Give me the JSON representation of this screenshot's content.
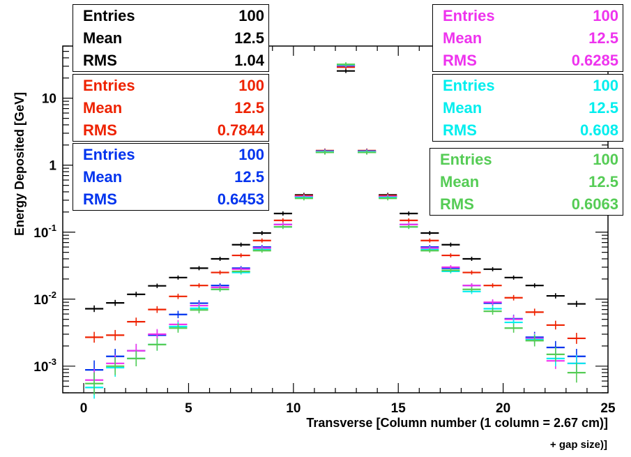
{
  "chart_data": {
    "type": "scatter",
    "xlabel_line1": "Transverse [Column number (1 column = 2.67 cm)]",
    "xlabel_line2": "+ gap size)]",
    "ylabel": "Energy Deposited [GeV]",
    "xlim": [
      -1,
      25
    ],
    "ylim": [
      0.0004,
      60
    ],
    "yscale": "log",
    "x_ticks": [
      "0",
      "5",
      "10",
      "15",
      "20",
      "25"
    ],
    "y_ticks": [
      {
        "value": 0.001,
        "base": "10",
        "exp": "-3"
      },
      {
        "value": 0.01,
        "base": "10",
        "exp": "-2"
      },
      {
        "value": 0.1,
        "base": "10",
        "exp": "-1"
      },
      {
        "value": 1,
        "base": "1",
        "exp": ""
      },
      {
        "value": 10,
        "base": "10",
        "exp": ""
      }
    ],
    "grid": false,
    "x": [
      0.5,
      1.5,
      2.5,
      3.5,
      4.5,
      5.5,
      6.5,
      7.5,
      8.5,
      9.5,
      10.5,
      11.5,
      12.5,
      13.5,
      14.5,
      15.5,
      16.5,
      17.5,
      18.5,
      19.5,
      20.5,
      21.5,
      22.5,
      23.5
    ],
    "series": [
      {
        "color": "#000000",
        "values": [
          0.0072,
          0.0088,
          0.0118,
          0.0158,
          0.021,
          0.029,
          0.04,
          0.065,
          0.097,
          0.19,
          0.36,
          1.55,
          25.5,
          1.55,
          0.36,
          0.19,
          0.097,
          0.065,
          0.04,
          0.028,
          0.021,
          0.016,
          0.0112,
          0.0085
        ]
      },
      {
        "color": "#ee2200",
        "values": [
          0.0027,
          0.0029,
          0.0046,
          0.007,
          0.011,
          0.016,
          0.025,
          0.045,
          0.075,
          0.15,
          0.35,
          1.65,
          29.0,
          1.65,
          0.35,
          0.15,
          0.075,
          0.045,
          0.025,
          0.016,
          0.0105,
          0.0064,
          0.0041,
          0.0026
        ]
      },
      {
        "color": "#0033ee",
        "values": [
          0.00088,
          0.0014,
          0.0017,
          0.0029,
          0.0059,
          0.0087,
          0.016,
          0.029,
          0.06,
          0.13,
          0.34,
          1.62,
          30.5,
          1.62,
          0.34,
          0.13,
          0.06,
          0.029,
          0.016,
          0.0087,
          0.0051,
          0.0027,
          0.0019,
          0.0014
        ]
      },
      {
        "color": "#ee33ee",
        "values": [
          0.00062,
          0.0011,
          0.0017,
          0.003,
          0.0042,
          0.008,
          0.015,
          0.028,
          0.058,
          0.13,
          0.34,
          1.6,
          31.0,
          1.6,
          0.34,
          0.13,
          0.058,
          0.03,
          0.016,
          0.009,
          0.005,
          0.0026,
          0.0012,
          0.0011
        ]
      },
      {
        "color": "#00eeee",
        "values": [
          0.00048,
          0.00095,
          0.0013,
          0.0021,
          0.0039,
          0.0073,
          0.014,
          0.025,
          0.055,
          0.12,
          0.33,
          1.58,
          31.5,
          1.58,
          0.33,
          0.12,
          0.055,
          0.026,
          0.013,
          0.0072,
          0.0045,
          0.0025,
          0.0013,
          0.0011
        ]
      },
      {
        "color": "#55cc55",
        "values": [
          0.00055,
          0.001,
          0.0013,
          0.0021,
          0.0037,
          0.0069,
          0.014,
          0.026,
          0.053,
          0.12,
          0.32,
          1.55,
          32.0,
          1.55,
          0.32,
          0.12,
          0.053,
          0.027,
          0.014,
          0.0066,
          0.0037,
          0.0024,
          0.0015,
          0.0008
        ]
      }
    ],
    "stat_boxes": [
      {
        "color": "#000000",
        "entries_label": "Entries",
        "entries": "100",
        "mean_label": "Mean",
        "mean": "12.5",
        "rms_label": "RMS",
        "rms": "1.04"
      },
      {
        "color": "#ee2200",
        "entries_label": "Entries",
        "entries": "100",
        "mean_label": "Mean",
        "mean": "12.5",
        "rms_label": "RMS",
        "rms": "0.7844"
      },
      {
        "color": "#0033ee",
        "entries_label": "Entries",
        "entries": "100",
        "mean_label": "Mean",
        "mean": "12.5",
        "rms_label": "RMS",
        "rms": "0.6453"
      },
      {
        "color": "#ee33ee",
        "entries_label": "Entries",
        "entries": "100",
        "mean_label": "Mean",
        "mean": "12.5",
        "rms_label": "RMS",
        "rms": "0.6285"
      },
      {
        "color": "#00eeee",
        "entries_label": "Entries",
        "entries": "100",
        "mean_label": "Mean",
        "mean": "12.5",
        "rms_label": "RMS",
        "rms": "0.608"
      },
      {
        "color": "#55cc55",
        "entries_label": "Entries",
        "entries": "100",
        "mean_label": "Mean",
        "mean": "12.5",
        "rms_label": "RMS",
        "rms": "0.6063"
      }
    ]
  }
}
